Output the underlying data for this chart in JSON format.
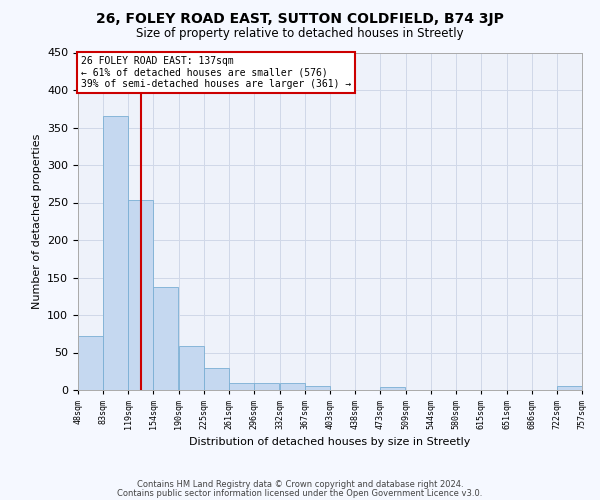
{
  "title": "26, FOLEY ROAD EAST, SUTTON COLDFIELD, B74 3JP",
  "subtitle": "Size of property relative to detached houses in Streetly",
  "xlabel": "Distribution of detached houses by size in Streetly",
  "ylabel": "Number of detached properties",
  "bar_color": "#c5d8f0",
  "bar_edge_color": "#7aafd4",
  "background_color": "#f5f8ff",
  "plot_bg_color": "#eef2fa",
  "grid_color": "#d0d8e8",
  "bins": [
    48,
    83,
    119,
    154,
    190,
    225,
    261,
    296,
    332,
    367,
    403,
    438,
    473,
    509,
    544,
    580,
    615,
    651,
    686,
    722,
    757
  ],
  "bin_labels": [
    "48sqm",
    "83sqm",
    "119sqm",
    "154sqm",
    "190sqm",
    "225sqm",
    "261sqm",
    "296sqm",
    "332sqm",
    "367sqm",
    "403sqm",
    "438sqm",
    "473sqm",
    "509sqm",
    "544sqm",
    "580sqm",
    "615sqm",
    "651sqm",
    "686sqm",
    "722sqm",
    "757sqm"
  ],
  "bar_heights": [
    72,
    365,
    253,
    138,
    59,
    29,
    10,
    9,
    10,
    5,
    0,
    0,
    4,
    0,
    0,
    0,
    0,
    0,
    0,
    5
  ],
  "property_size": 137,
  "property_label": "26 FOLEY ROAD EAST: 137sqm",
  "annotation_line1": "← 61% of detached houses are smaller (576)",
  "annotation_line2": "39% of semi-detached houses are larger (361) →",
  "ylim": [
    0,
    450
  ],
  "annotation_box_color": "#ffffff",
  "annotation_box_edge": "#cc0000",
  "property_line_color": "#cc0000",
  "footer1": "Contains HM Land Registry data © Crown copyright and database right 2024.",
  "footer2": "Contains public sector information licensed under the Open Government Licence v3.0."
}
